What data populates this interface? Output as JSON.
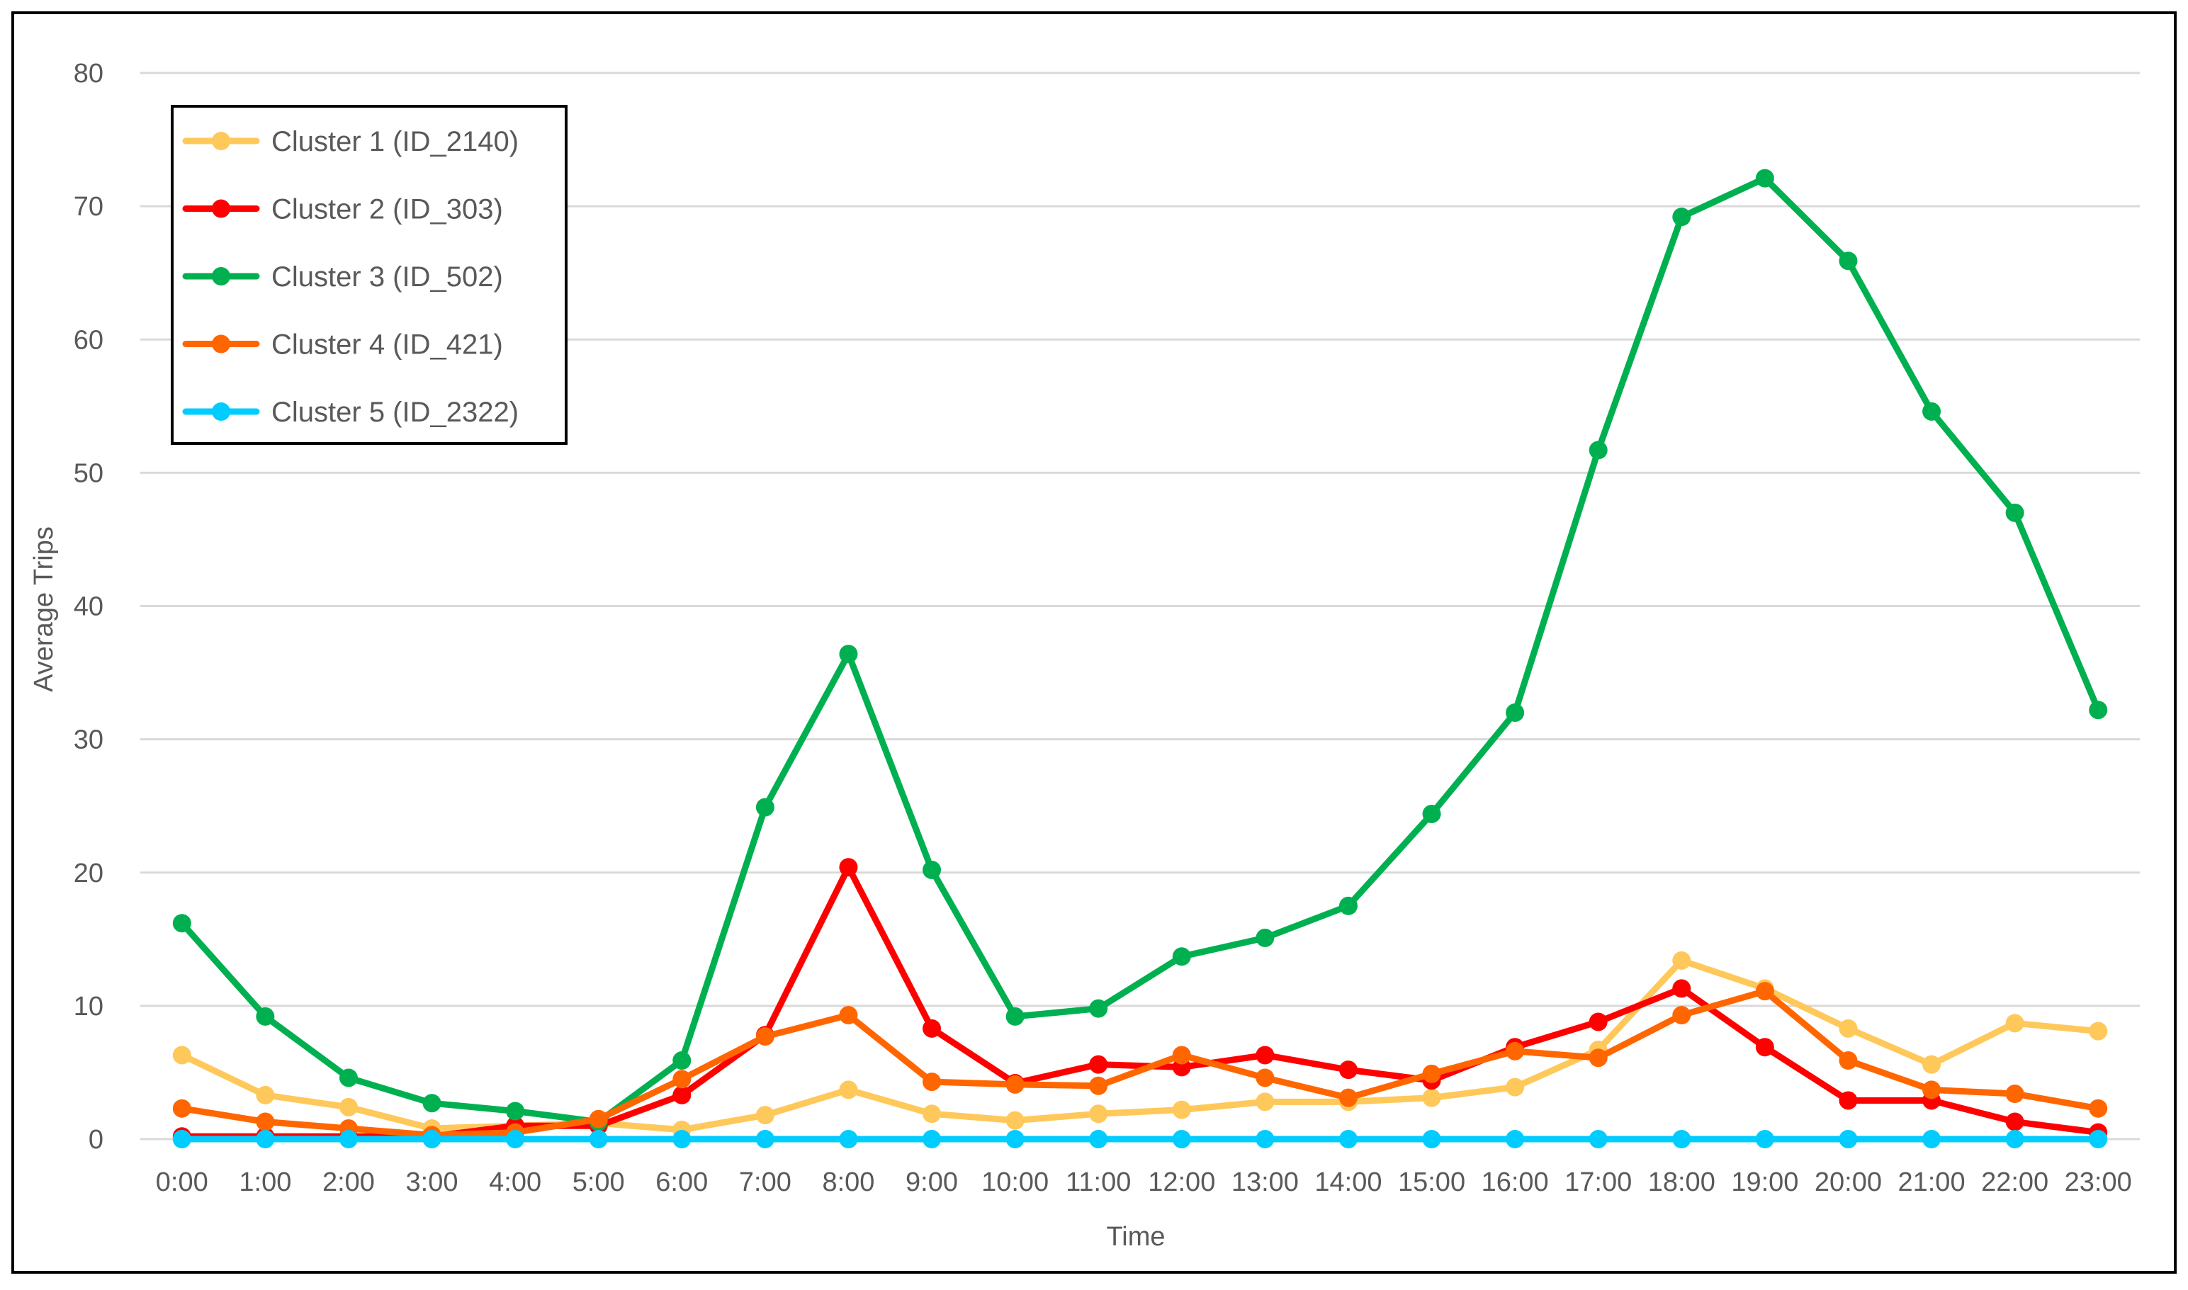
{
  "chart_data": {
    "type": "line",
    "title": "",
    "xlabel": "Time",
    "ylabel": "Average Trips",
    "ylim": [
      0,
      80
    ],
    "yticks": [
      0,
      10,
      20,
      30,
      40,
      50,
      60,
      70,
      80
    ],
    "grid": true,
    "legend_position": "top-left",
    "categories": [
      "0:00",
      "1:00",
      "2:00",
      "3:00",
      "4:00",
      "5:00",
      "6:00",
      "7:00",
      "8:00",
      "9:00",
      "10:00",
      "11:00",
      "12:00",
      "13:00",
      "14:00",
      "15:00",
      "16:00",
      "17:00",
      "18:00",
      "19:00",
      "20:00",
      "21:00",
      "22:00",
      "23:00"
    ],
    "series": [
      {
        "name": "Cluster 1 (ID_2140)",
        "color": "#FFC85A",
        "values": [
          6.3,
          3.3,
          2.4,
          0.8,
          1.0,
          1.2,
          0.7,
          1.8,
          3.7,
          1.9,
          1.4,
          1.9,
          2.2,
          2.8,
          2.8,
          3.1,
          3.9,
          6.7,
          13.4,
          11.3,
          8.3,
          5.6,
          8.7,
          8.1
        ]
      },
      {
        "name": "Cluster 2 (ID_303)",
        "color": "#FF0000",
        "values": [
          0.2,
          0.2,
          0.2,
          0.2,
          1.0,
          1.0,
          3.3,
          7.8,
          20.4,
          8.3,
          4.2,
          5.6,
          5.4,
          6.3,
          5.2,
          4.4,
          6.9,
          8.8,
          11.3,
          6.9,
          2.9,
          2.9,
          1.3,
          0.5
        ]
      },
      {
        "name": "Cluster 3 (ID_502)",
        "color": "#00B050",
        "values": [
          16.2,
          9.2,
          4.6,
          2.7,
          2.1,
          1.3,
          5.9,
          24.9,
          36.4,
          20.2,
          9.2,
          9.8,
          13.7,
          15.1,
          17.5,
          24.4,
          32.0,
          51.7,
          69.2,
          72.1,
          65.9,
          54.6,
          47.0,
          32.2
        ]
      },
      {
        "name": "Cluster 4 (ID_421)",
        "color": "#FF6600",
        "values": [
          2.3,
          1.3,
          0.8,
          0.3,
          0.5,
          1.5,
          4.5,
          7.7,
          9.3,
          4.3,
          4.1,
          4.0,
          6.3,
          4.6,
          3.1,
          4.9,
          6.6,
          6.1,
          9.3,
          11.1,
          5.9,
          3.7,
          3.4,
          2.3
        ]
      },
      {
        "name": "Cluster 5 (ID_2322)",
        "color": "#00CCFF",
        "values": [
          0.0,
          0.0,
          0.0,
          0.0,
          0.0,
          0.0,
          0.0,
          0.0,
          0.0,
          0.0,
          0.0,
          0.0,
          0.0,
          0.0,
          0.0,
          0.0,
          0.0,
          0.0,
          0.0,
          0.0,
          0.0,
          0.0,
          0.0,
          0.0
        ]
      }
    ]
  }
}
